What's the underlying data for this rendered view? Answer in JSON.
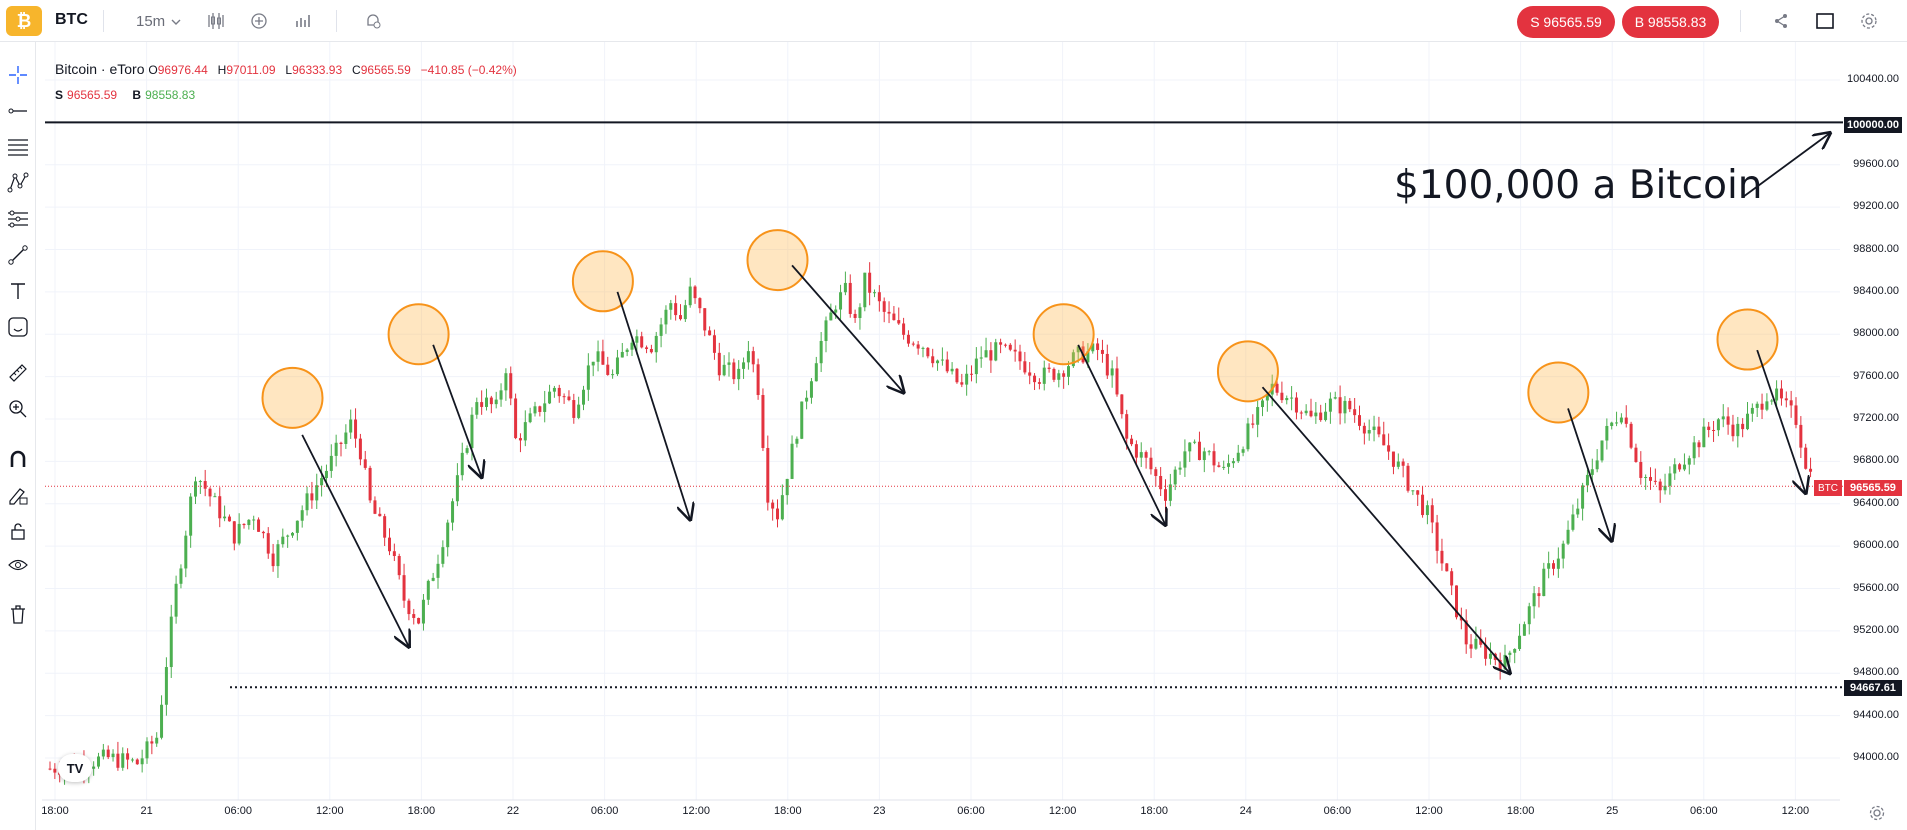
{
  "header": {
    "symbol": "BTC",
    "interval": "15m",
    "sell_button": "S 96565.59",
    "buy_button": "B 98558.83"
  },
  "legend": {
    "title": "Bitcoin · eToro",
    "o_label": "O",
    "o_value": "96976.44",
    "h_label": "H",
    "h_value": "97011.09",
    "l_label": "L",
    "l_value": "96333.93",
    "c_label": "C",
    "c_value": "96565.59",
    "change": "−410.85 (−0.42%)",
    "s_label": "S",
    "s_value": "96565.59",
    "b_label": "B",
    "b_value": "98558.83"
  },
  "annotation_text": "$100,000 a Bitcoin",
  "price_labels": {
    "horizontal_line": "100000.00",
    "last_price": "96565.59",
    "last_price_tag": "BTC",
    "support_line": "94667.61"
  },
  "icons": [
    "bitcoin-logo-icon",
    "chevron-down-icon",
    "indicators-icon",
    "add-icon",
    "bar-chart-icon",
    "alert-icon",
    "share-icon",
    "fullscreen-icon",
    "settings-icon",
    "crosshair-icon",
    "trend-line-icon",
    "fib-icon",
    "pattern-icon",
    "projection-icon",
    "brush-icon",
    "text-icon",
    "emoji-icon",
    "ruler-icon",
    "zoom-icon",
    "magnet-icon",
    "lock-drawing-icon",
    "lock-icon",
    "eye-icon",
    "trash-icon",
    "tradingview-logo-icon"
  ],
  "colors": {
    "up": "#26a69a",
    "up_candle": "#4caf50",
    "down": "#e3333f",
    "circle": "#f7931a"
  },
  "chart_data": {
    "type": "candlestick",
    "title": "Bitcoin · eToro",
    "xlabel": "",
    "ylabel": "",
    "price_ticks": [
      "100400.00",
      "99600.00",
      "99200.00",
      "98800.00",
      "98400.00",
      "98000.00",
      "97600.00",
      "97200.00",
      "96800.00",
      "96400.00",
      "96000.00",
      "95600.00",
      "95200.00",
      "94800.00",
      "94400.00",
      "94000.00"
    ],
    "time_ticks": [
      "18:00",
      "21",
      "06:00",
      "12:00",
      "18:00",
      "22",
      "06:00",
      "12:00",
      "18:00",
      "23",
      "06:00",
      "12:00",
      "18:00",
      "24",
      "06:00",
      "12:00",
      "18:00",
      "25",
      "06:00",
      "12:00"
    ],
    "ylim": [
      93700,
      100700
    ],
    "horizontal_line": 100000,
    "support_line": 94667.61,
    "last_price": 96565.59,
    "price_path": [
      [
        0,
        93900
      ],
      [
        12,
        94000
      ],
      [
        18,
        93950
      ],
      [
        22,
        94200
      ],
      [
        26,
        95600
      ],
      [
        30,
        96700
      ],
      [
        34,
        96400
      ],
      [
        38,
        96100
      ],
      [
        42,
        96300
      ],
      [
        46,
        95900
      ],
      [
        50,
        96200
      ],
      [
        54,
        96500
      ],
      [
        58,
        96800
      ],
      [
        62,
        97150
      ],
      [
        64,
        96900
      ],
      [
        66,
        96400
      ],
      [
        70,
        96000
      ],
      [
        73,
        95500
      ],
      [
        76,
        95300
      ],
      [
        80,
        95900
      ],
      [
        84,
        96600
      ],
      [
        88,
        97400
      ],
      [
        92,
        97300
      ],
      [
        94,
        97700
      ],
      [
        96,
        97000
      ],
      [
        100,
        97250
      ],
      [
        104,
        97500
      ],
      [
        108,
        97300
      ],
      [
        112,
        97800
      ],
      [
        116,
        97600
      ],
      [
        120,
        98000
      ],
      [
        124,
        97900
      ],
      [
        128,
        98300
      ],
      [
        130,
        98150
      ],
      [
        132,
        98400
      ],
      [
        134,
        98200
      ],
      [
        138,
        97700
      ],
      [
        142,
        97600
      ],
      [
        144,
        97900
      ],
      [
        146,
        97500
      ],
      [
        148,
        96500
      ],
      [
        150,
        96300
      ],
      [
        154,
        97100
      ],
      [
        158,
        97800
      ],
      [
        162,
        98300
      ],
      [
        164,
        98400
      ],
      [
        166,
        98100
      ],
      [
        168,
        98500
      ],
      [
        172,
        98200
      ],
      [
        176,
        98000
      ],
      [
        180,
        97900
      ],
      [
        184,
        97700
      ],
      [
        188,
        97500
      ],
      [
        192,
        97800
      ],
      [
        196,
        97850
      ],
      [
        200,
        97750
      ],
      [
        204,
        97600
      ],
      [
        208,
        97650
      ],
      [
        212,
        97800
      ],
      [
        216,
        97850
      ],
      [
        219,
        97600
      ],
      [
        222,
        97000
      ],
      [
        226,
        96800
      ],
      [
        230,
        96500
      ],
      [
        234,
        96900
      ],
      [
        238,
        96900
      ],
      [
        242,
        96700
      ],
      [
        246,
        97000
      ],
      [
        250,
        97300
      ],
      [
        252,
        97500
      ],
      [
        256,
        97400
      ],
      [
        260,
        97200
      ],
      [
        264,
        97350
      ],
      [
        268,
        97300
      ],
      [
        272,
        97100
      ],
      [
        276,
        96900
      ],
      [
        280,
        96600
      ],
      [
        284,
        96300
      ],
      [
        288,
        95700
      ],
      [
        292,
        95100
      ],
      [
        296,
        95000
      ],
      [
        300,
        94900
      ],
      [
        304,
        95300
      ],
      [
        308,
        95700
      ],
      [
        312,
        96000
      ],
      [
        316,
        96500
      ],
      [
        320,
        97000
      ],
      [
        324,
        97300
      ],
      [
        328,
        96700
      ],
      [
        332,
        96500
      ],
      [
        336,
        96800
      ],
      [
        340,
        97000
      ],
      [
        344,
        97200
      ],
      [
        348,
        97100
      ],
      [
        352,
        97300
      ],
      [
        354,
        97450
      ],
      [
        356,
        97400
      ],
      [
        358,
        97300
      ],
      [
        360,
        97200
      ],
      [
        362,
        96800
      ],
      [
        364,
        96565
      ]
    ],
    "highlight_circles": [
      {
        "time_index": 50,
        "price": 97400
      },
      {
        "time_index": 76,
        "price": 98000
      },
      {
        "time_index": 114,
        "price": 98500
      },
      {
        "time_index": 150,
        "price": 98700
      },
      {
        "time_index": 209,
        "price": 98000
      },
      {
        "time_index": 247,
        "price": 97650
      },
      {
        "time_index": 311,
        "price": 97450
      },
      {
        "time_index": 350,
        "price": 97950
      }
    ]
  }
}
